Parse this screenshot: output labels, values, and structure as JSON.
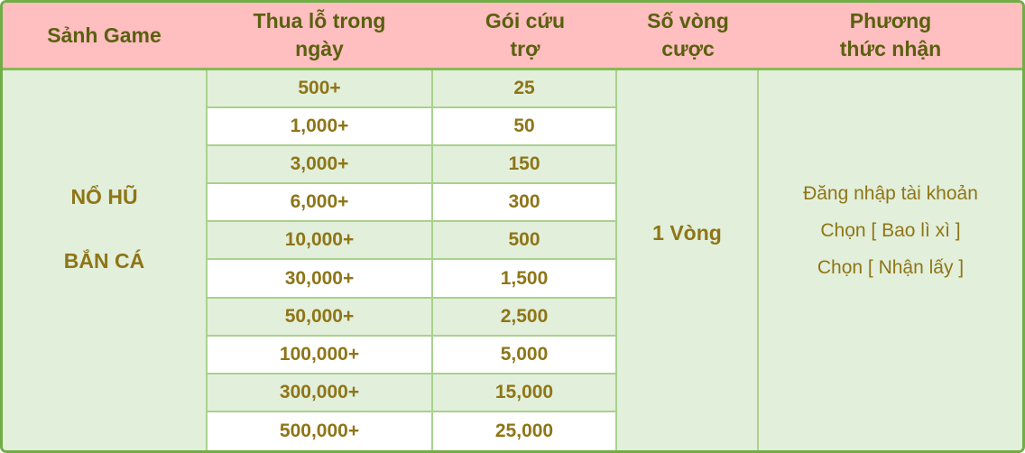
{
  "table": {
    "headers": [
      "Sảnh Game",
      "Thua lỗ trong\nngày",
      "Gói cứu\ntrợ",
      "Số vòng\ncược",
      "Phương\nthức nhận"
    ],
    "game_lobby": [
      "NỔ HŨ",
      "BẮN CÁ"
    ],
    "rows": [
      {
        "loss": "500+",
        "package": "25"
      },
      {
        "loss": "1,000+",
        "package": "50"
      },
      {
        "loss": "3,000+",
        "package": "150"
      },
      {
        "loss": "6,000+",
        "package": "300"
      },
      {
        "loss": "10,000+",
        "package": "500"
      },
      {
        "loss": "30,000+",
        "package": "1,500"
      },
      {
        "loss": "50,000+",
        "package": "2,500"
      },
      {
        "loss": "100,000+",
        "package": "5,000"
      },
      {
        "loss": "300,000+",
        "package": "15,000"
      },
      {
        "loss": "500,000+",
        "package": "25,000"
      }
    ],
    "betting_rounds": "1 Vòng",
    "receive_method": [
      "Đăng nhập tài khoản",
      "Chọn [ Bao lì xì ]",
      "Chọn [ Nhận lấy ]"
    ]
  },
  "colors": {
    "header_bg": "#ffbebf",
    "header_text": "#5a600f",
    "body_text": "#8e7517",
    "stripe_green": "#e2efda",
    "row_white": "#ffffff",
    "outer_border": "#70ad47",
    "header_border": "#87b957",
    "inner_border": "#a9d18e"
  }
}
